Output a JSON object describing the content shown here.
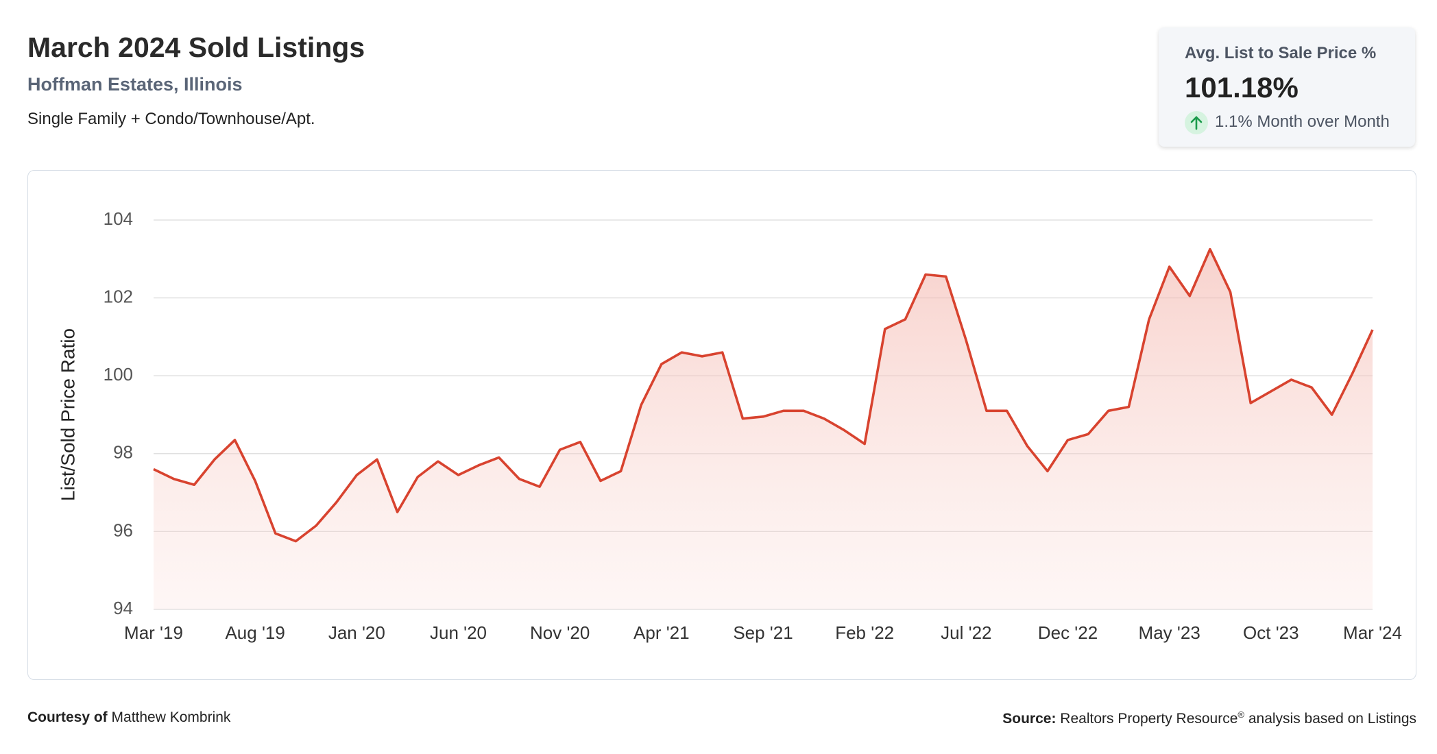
{
  "header": {
    "title": "March 2024 Sold Listings",
    "location": "Hoffman Estates, Illinois",
    "property_types": "Single Family + Condo/Townhouse/Apt."
  },
  "kpi": {
    "label": "Avg. List to Sale Price %",
    "value": "101.18%",
    "change": "1.1% Month over Month"
  },
  "chart_data": {
    "type": "line",
    "y_label": "List/Sold Price Ratio",
    "color": "#d8432f",
    "grid": true,
    "categories": [
      "Mar '19",
      null,
      null,
      null,
      null,
      "Aug '19",
      null,
      null,
      null,
      null,
      "Jan '20",
      null,
      null,
      null,
      null,
      "Jun '20",
      null,
      null,
      null,
      null,
      "Nov '20",
      null,
      null,
      null,
      null,
      "Apr '21",
      null,
      null,
      null,
      null,
      "Sep '21",
      null,
      null,
      null,
      null,
      "Feb '22",
      null,
      null,
      null,
      null,
      "Jul '22",
      null,
      null,
      null,
      null,
      "Dec '22",
      null,
      null,
      null,
      null,
      "May '23",
      null,
      null,
      null,
      null,
      "Oct '23",
      null,
      null,
      null,
      null,
      "Mar '24"
    ],
    "values": [
      97.6,
      97.35,
      97.2,
      97.85,
      98.35,
      97.3,
      95.95,
      95.75,
      96.15,
      96.75,
      97.45,
      97.85,
      96.5,
      97.4,
      97.8,
      97.45,
      97.7,
      97.9,
      97.35,
      97.15,
      98.1,
      98.3,
      97.3,
      97.55,
      99.25,
      100.3,
      100.6,
      100.5,
      100.6,
      98.9,
      98.95,
      99.1,
      99.1,
      98.9,
      98.6,
      98.25,
      101.2,
      101.45,
      102.6,
      102.55,
      100.9,
      99.1,
      99.1,
      98.2,
      97.55,
      98.35,
      98.5,
      99.1,
      99.2,
      101.45,
      102.8,
      102.05,
      103.25,
      102.15,
      99.3,
      99.6,
      99.9,
      99.7,
      99.0,
      100.05,
      101.18
    ],
    "ylim": [
      94,
      104
    ],
    "yticks": [
      94,
      96,
      98,
      100,
      102,
      104
    ]
  },
  "footer": {
    "courtesy_label": "Courtesy of",
    "courtesy_name": "Matthew Kombrink",
    "source_label": "Source:",
    "source_name": "Realtors Property Resource",
    "source_mark": "®",
    "source_rest": "analysis based on Listings"
  }
}
